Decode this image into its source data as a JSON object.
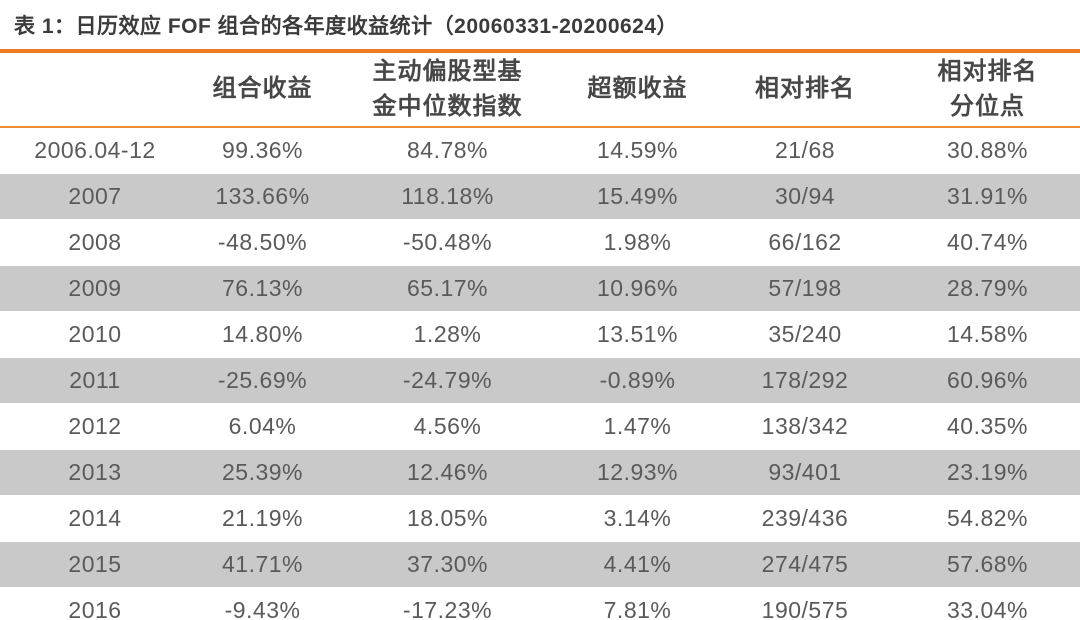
{
  "title": "表 1：日历效应 FOF 组合的各年度收益统计（20060331-20200624）",
  "colors": {
    "accent_orange_thick_rule": "#ED7C25",
    "accent_orange_thin_rule": "#EF8B33",
    "row_alt_gray": "#C9C9C9",
    "body_text": "#5A5A5A",
    "header_text": "#474747",
    "title_text": "#3B3B3B"
  },
  "table": {
    "columns": [
      "",
      "组合收益",
      "主动偏股型基\n金中位数指数",
      "超额收益",
      "相对排名",
      "相对排名\n分位点"
    ],
    "rows": [
      [
        "2006.04-12",
        "99.36%",
        "84.78%",
        "14.59%",
        "21/68",
        "30.88%"
      ],
      [
        "2007",
        "133.66%",
        "118.18%",
        "15.49%",
        "30/94",
        "31.91%"
      ],
      [
        "2008",
        "-48.50%",
        "-50.48%",
        "1.98%",
        "66/162",
        "40.74%"
      ],
      [
        "2009",
        "76.13%",
        "65.17%",
        "10.96%",
        "57/198",
        "28.79%"
      ],
      [
        "2010",
        "14.80%",
        "1.28%",
        "13.51%",
        "35/240",
        "14.58%"
      ],
      [
        "2011",
        "-25.69%",
        "-24.79%",
        "-0.89%",
        "178/292",
        "60.96%"
      ],
      [
        "2012",
        "6.04%",
        "4.56%",
        "1.47%",
        "138/342",
        "40.35%"
      ],
      [
        "2013",
        "25.39%",
        "12.46%",
        "12.93%",
        "93/401",
        "23.19%"
      ],
      [
        "2014",
        "21.19%",
        "18.05%",
        "3.14%",
        "239/436",
        "54.82%"
      ],
      [
        "2015",
        "41.71%",
        "37.30%",
        "4.41%",
        "274/475",
        "57.68%"
      ],
      [
        "2016",
        "-9.43%",
        "-17.23%",
        "7.81%",
        "190/575",
        "33.04%"
      ]
    ]
  }
}
